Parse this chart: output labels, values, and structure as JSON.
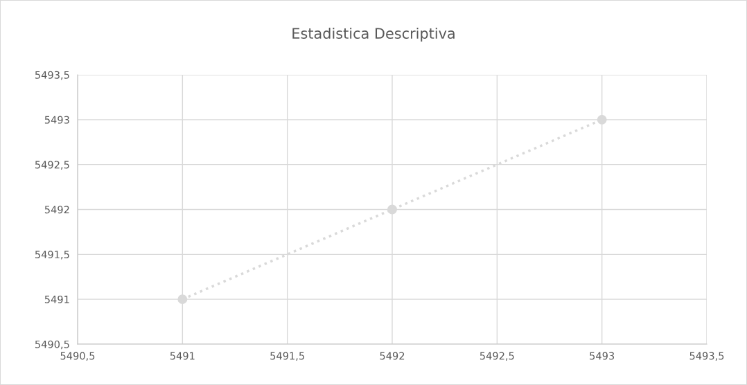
{
  "chart_data": {
    "type": "line",
    "title": "Estadistica Descriptiva",
    "x": [
      5491,
      5492,
      5493
    ],
    "series": [
      {
        "color": "#d9d9d9",
        "values": [
          5491,
          5492,
          5493
        ]
      }
    ],
    "marker": "circle",
    "line_style": "dotted",
    "grid": true,
    "xlim": [
      5490.5,
      5493.5
    ],
    "ylim": [
      5490.5,
      5493.5
    ],
    "xticks": [
      {
        "value": 5490.5,
        "label": "5490,5"
      },
      5491,
      {
        "value": 5491.5,
        "label": "5491,5"
      },
      5492,
      {
        "value": 5492.5,
        "label": "5492,5"
      },
      5493,
      {
        "value": 5493.5,
        "label": "5493,5"
      }
    ],
    "yticks": [
      {
        "value": 5490.5,
        "label": "5490,5"
      },
      5491,
      {
        "value": 5491.5,
        "label": "5491,5"
      },
      5492,
      {
        "value": 5492.5,
        "label": "5492,5"
      },
      5493,
      {
        "value": 5493.5,
        "label": "5493,5"
      }
    ]
  }
}
